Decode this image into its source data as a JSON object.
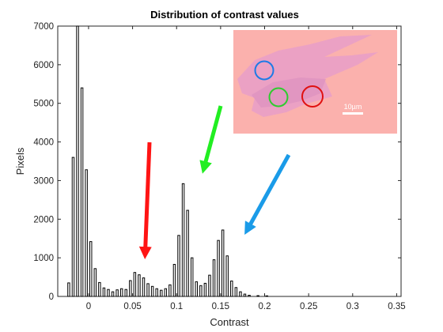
{
  "chart_data": {
    "type": "bar",
    "title": "Distribution of contrast values",
    "xlabel": "Contrast",
    "ylabel": "Pixels",
    "xlim": [
      -0.035,
      0.355
    ],
    "ylim": [
      0,
      7000
    ],
    "xticks": [
      0,
      0.05,
      0.1,
      0.15,
      0.2,
      0.25,
      0.3,
      0.35
    ],
    "xtick_labels": [
      "0",
      "0.05",
      "0.1",
      "0.15",
      "0.2",
      "0.25",
      "0.3",
      "0.35"
    ],
    "yticks": [
      0,
      1000,
      2000,
      3000,
      4000,
      5000,
      6000,
      7000
    ],
    "ytick_labels": [
      "0",
      "1000",
      "2000",
      "3000",
      "4000",
      "5000",
      "6000",
      "7000"
    ],
    "grid": false,
    "bar_width": 0.0022,
    "bars": [
      {
        "x": -0.0225,
        "y": 350
      },
      {
        "x": -0.0175,
        "y": 3600
      },
      {
        "x": -0.0125,
        "y": 7000
      },
      {
        "x": -0.0075,
        "y": 5400
      },
      {
        "x": -0.0025,
        "y": 3280
      },
      {
        "x": 0.0025,
        "y": 1420
      },
      {
        "x": 0.0075,
        "y": 720
      },
      {
        "x": 0.0125,
        "y": 360
      },
      {
        "x": 0.0175,
        "y": 220
      },
      {
        "x": 0.0225,
        "y": 180
      },
      {
        "x": 0.0275,
        "y": 120
      },
      {
        "x": 0.0325,
        "y": 170
      },
      {
        "x": 0.0375,
        "y": 200
      },
      {
        "x": 0.0425,
        "y": 180
      },
      {
        "x": 0.0475,
        "y": 410
      },
      {
        "x": 0.0525,
        "y": 620
      },
      {
        "x": 0.0575,
        "y": 560
      },
      {
        "x": 0.0625,
        "y": 480
      },
      {
        "x": 0.0675,
        "y": 330
      },
      {
        "x": 0.0725,
        "y": 260
      },
      {
        "x": 0.0775,
        "y": 200
      },
      {
        "x": 0.0825,
        "y": 160
      },
      {
        "x": 0.0875,
        "y": 200
      },
      {
        "x": 0.0925,
        "y": 300
      },
      {
        "x": 0.0975,
        "y": 830
      },
      {
        "x": 0.1025,
        "y": 1580
      },
      {
        "x": 0.1075,
        "y": 2920
      },
      {
        "x": 0.1125,
        "y": 2230
      },
      {
        "x": 0.1175,
        "y": 1000
      },
      {
        "x": 0.1225,
        "y": 380
      },
      {
        "x": 0.1275,
        "y": 280
      },
      {
        "x": 0.1325,
        "y": 340
      },
      {
        "x": 0.1375,
        "y": 550
      },
      {
        "x": 0.1425,
        "y": 950
      },
      {
        "x": 0.1475,
        "y": 1450
      },
      {
        "x": 0.1525,
        "y": 1720
      },
      {
        "x": 0.1575,
        "y": 1050
      },
      {
        "x": 0.1625,
        "y": 400
      },
      {
        "x": 0.1675,
        "y": 230
      },
      {
        "x": 0.1725,
        "y": 120
      },
      {
        "x": 0.1775,
        "y": 60
      },
      {
        "x": 0.1825,
        "y": 30
      },
      {
        "x": 0.1925,
        "y": 20
      },
      {
        "x": 0.2025,
        "y": 15
      }
    ],
    "inset_image": {
      "scale_bar_label": "10µm",
      "circle_colors": [
        "#1e7be6",
        "#2ecc2e",
        "#e01010"
      ],
      "background_color": "#fbb1ad",
      "flake_color": "#e9a0c6"
    },
    "arrows": [
      {
        "color": "#ff1414",
        "points_at_x": 0.06
      },
      {
        "color": "#22ee22",
        "points_at_x": 0.118
      },
      {
        "color": "#1a9be8",
        "points_at_x": 0.17
      }
    ]
  }
}
